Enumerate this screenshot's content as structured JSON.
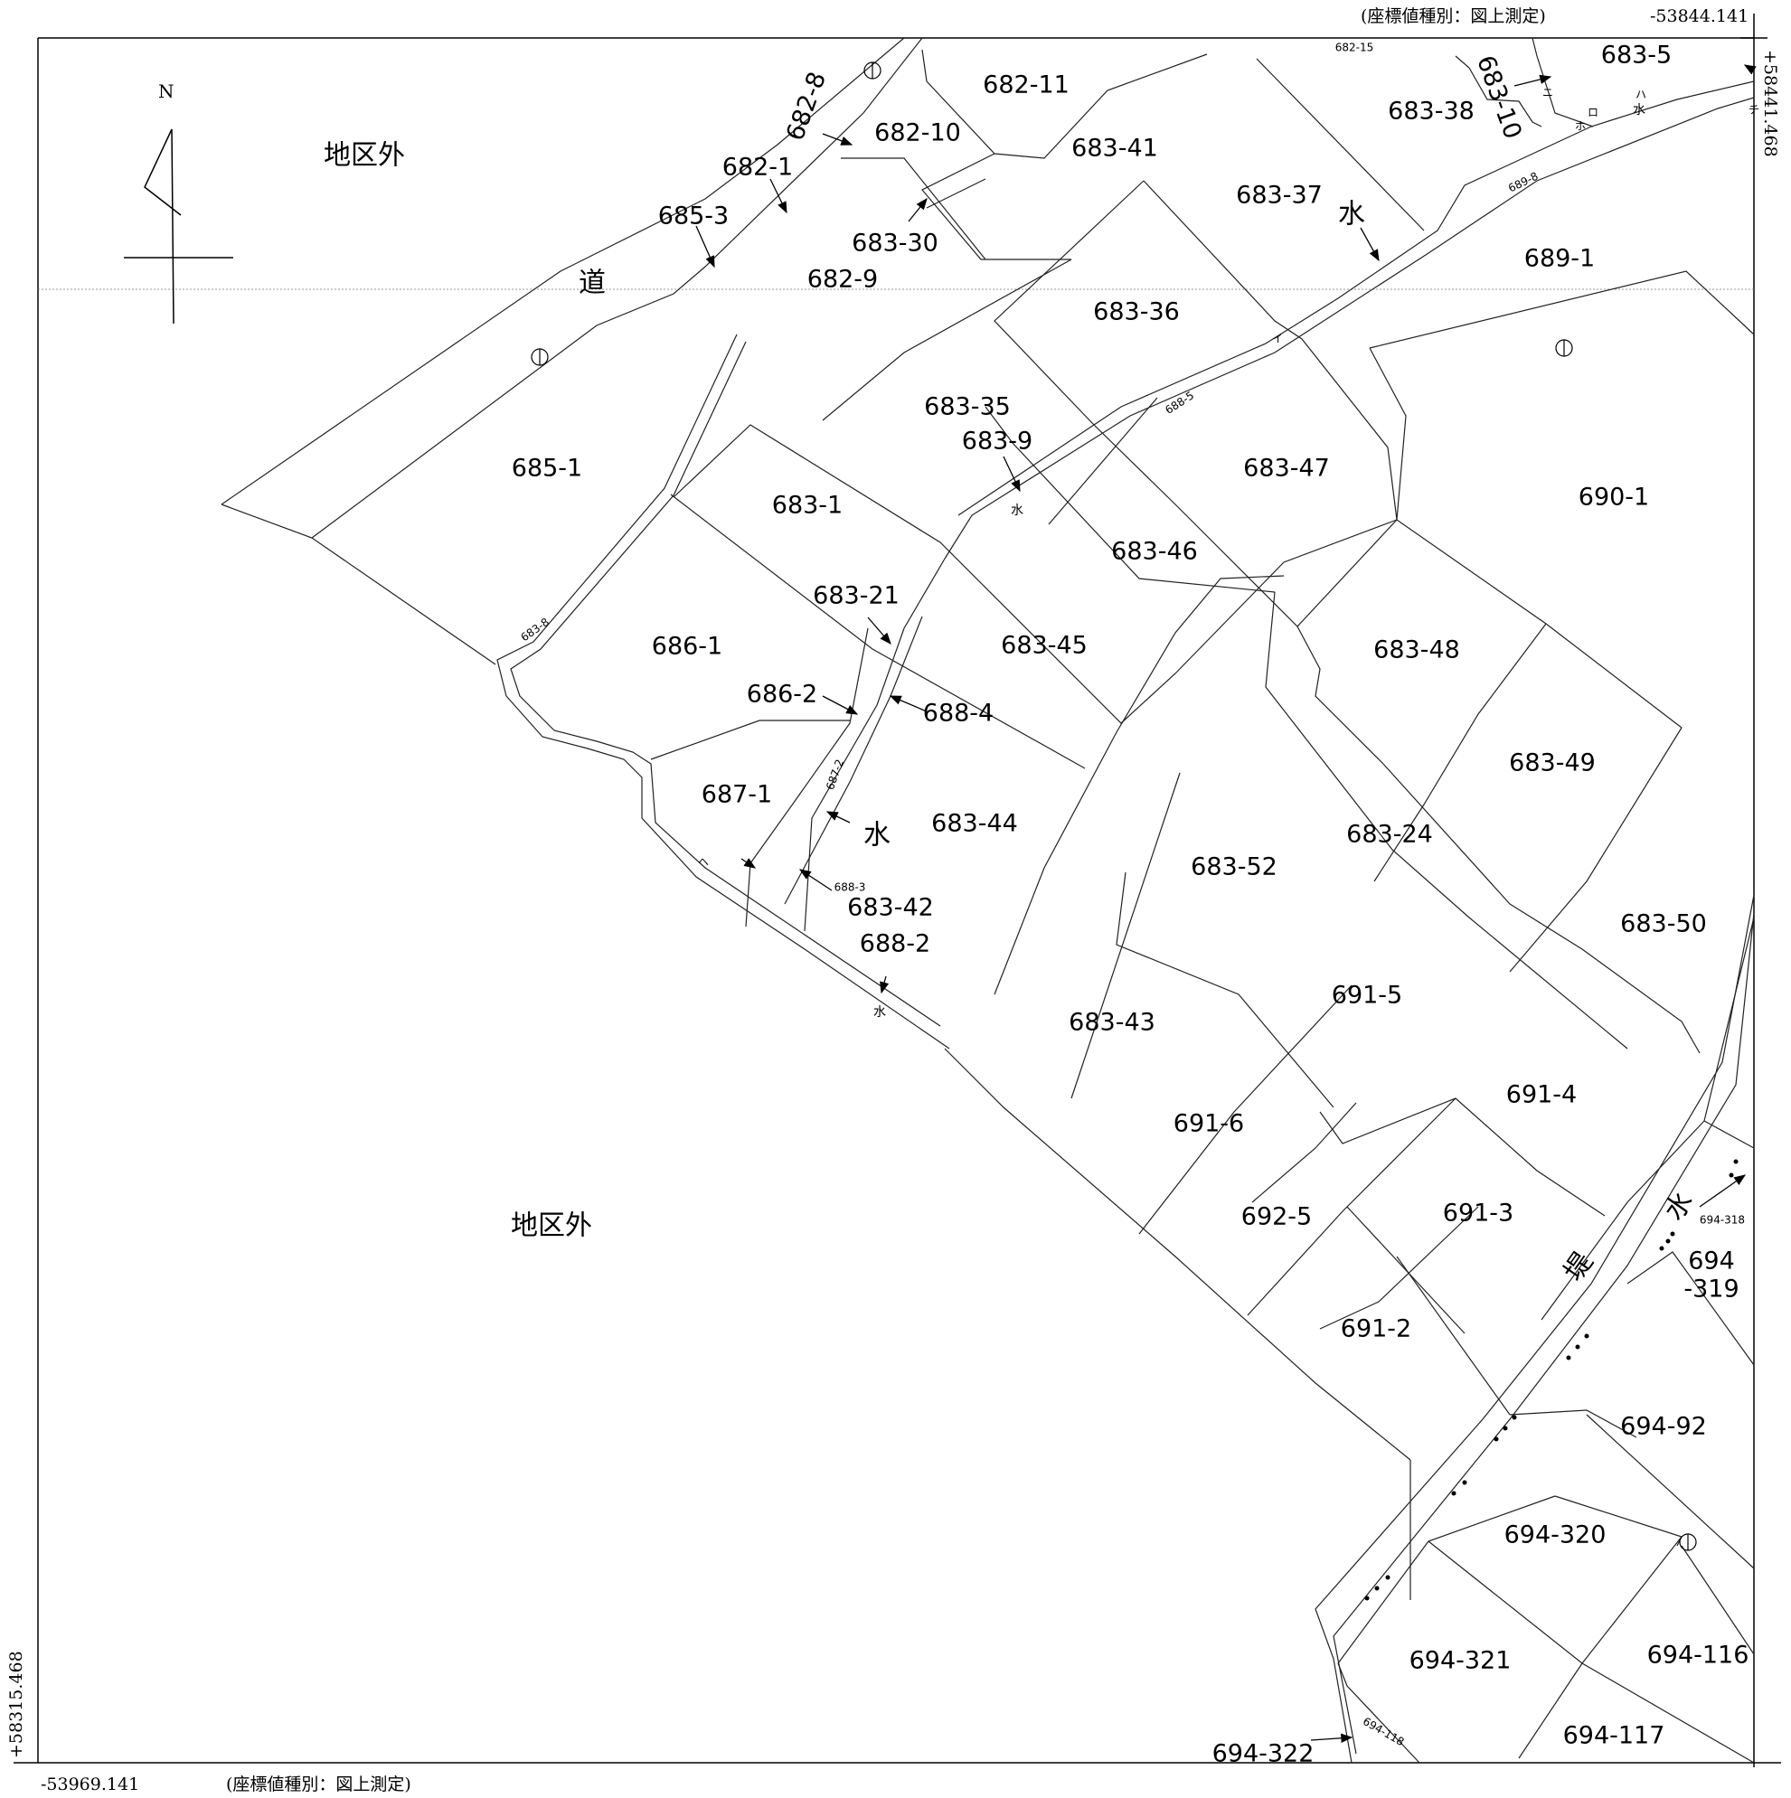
{
  "coordinates": {
    "top_right_note": "(座標値種別：図上測定)",
    "top_right_x": "-53844.141",
    "right_y": "+58441.468",
    "left_y": "+58315.468",
    "bottom_left_x": "-53969.141",
    "bottom_note": "(座標値種別：図上測定)"
  },
  "north_label": "N",
  "area_labels": {
    "outside_top": "地区外",
    "outside_bottom": "地区外",
    "road": "道",
    "embankment": "堤"
  },
  "water_symbol": "水",
  "parcels": [
    "682-15",
    "683-5",
    "682-11",
    "682-8",
    "682-10",
    "683-38",
    "683-10",
    "683-41",
    "682-1",
    "683-37",
    "685-3",
    "683-30",
    "682-9",
    "689-1",
    "683-36",
    "689-8",
    "688-5",
    "683-35",
    "683-9",
    "685-1",
    "683-47",
    "683-1",
    "690-1",
    "683-46",
    "683-21",
    "683-8",
    "686-1",
    "683-45",
    "686-2",
    "688-4",
    "683-48",
    "687-2",
    "683-49",
    "687-1",
    "683-44",
    "683-24",
    "683-52",
    "688-3",
    "683-42",
    "683-50",
    "688-2",
    "691-5",
    "683-43",
    "691-4",
    "691-6",
    "692-5",
    "691-3",
    "694-318",
    "694",
    "-319",
    "691-2",
    "694-92",
    "694-320",
    "694-321",
    "694-116",
    "694-117",
    "694-118",
    "694-322"
  ],
  "kana_marks": [
    "イ",
    "ロ",
    "ハ",
    "ニ",
    "ホ",
    "チ",
    "ヘ"
  ]
}
